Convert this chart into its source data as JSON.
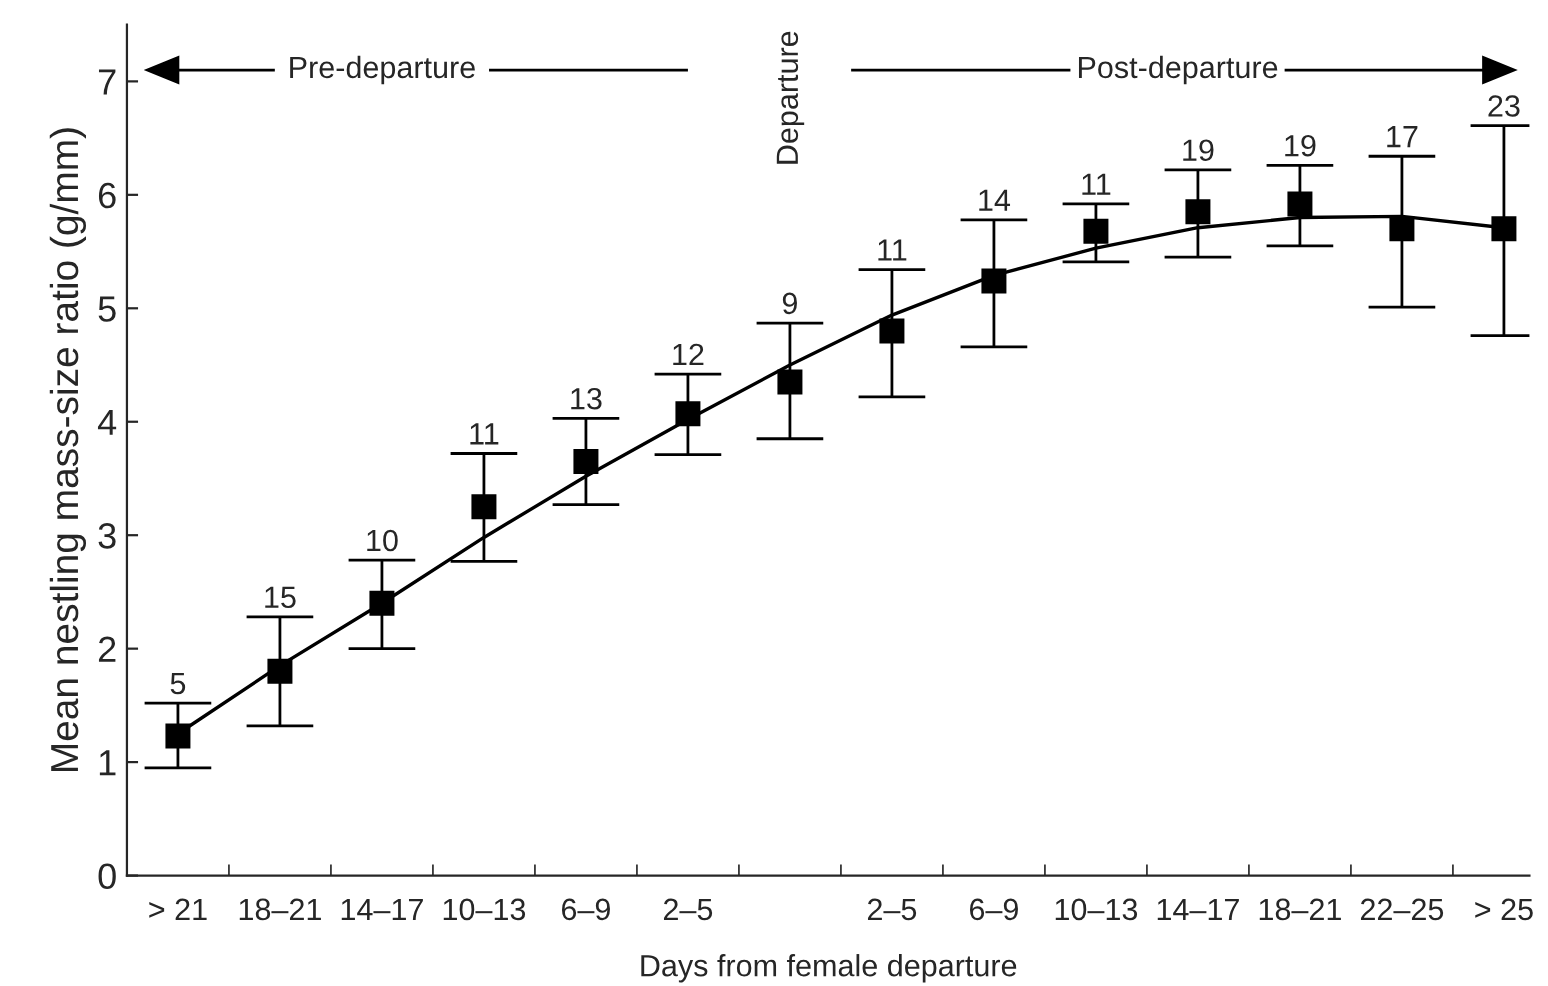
{
  "chart_data": {
    "type": "scatter",
    "xlabel": "Days from female departure",
    "ylabel": "Mean nestling mass-size ratio (g/mm)",
    "categories": [
      "> 21",
      "18–21",
      "14–17",
      "10–13",
      "6–9",
      "2–5",
      null,
      "2–5",
      "6–9",
      "10–13",
      "14–17",
      "18–21",
      "22–25",
      "> 25"
    ],
    "ylim": [
      0,
      7.5
    ],
    "yticks": [
      0,
      1,
      2,
      3,
      4,
      5,
      6,
      7
    ],
    "grid": false,
    "legend": false,
    "series": [
      {
        "color": "#000000",
        "marker": "square",
        "values": [
          1.23,
          1.8,
          2.4,
          3.25,
          3.65,
          4.07,
          4.35,
          4.8,
          5.24,
          5.68,
          5.85,
          5.92,
          5.7,
          5.7
        ],
        "errors": [
          [
            0.95,
            1.52
          ],
          [
            1.32,
            2.28
          ],
          [
            2.0,
            2.78
          ],
          [
            2.77,
            3.72
          ],
          [
            3.27,
            4.03
          ],
          [
            3.71,
            4.42
          ],
          [
            3.85,
            4.87
          ],
          [
            4.22,
            5.34
          ],
          [
            4.66,
            5.78
          ],
          [
            5.41,
            5.92
          ],
          [
            5.45,
            6.22
          ],
          [
            5.55,
            6.26
          ],
          [
            5.01,
            6.34
          ],
          [
            4.76,
            6.61
          ]
        ]
      },
      {
        "type": "line",
        "color": "#000000",
        "line_style": "solid",
        "values": [
          1.25,
          1.85,
          2.4,
          2.98,
          3.52,
          4.02,
          4.5,
          4.94,
          5.29,
          5.53,
          5.71,
          5.8,
          5.81,
          5.71
        ]
      }
    ],
    "annotations": [
      "Pre-departure",
      "Departure",
      "Post-departure",
      "5",
      "15",
      "10",
      "11",
      "13",
      "12",
      "9",
      "11",
      "14",
      "11",
      "19",
      "19",
      "17",
      "23"
    ]
  }
}
